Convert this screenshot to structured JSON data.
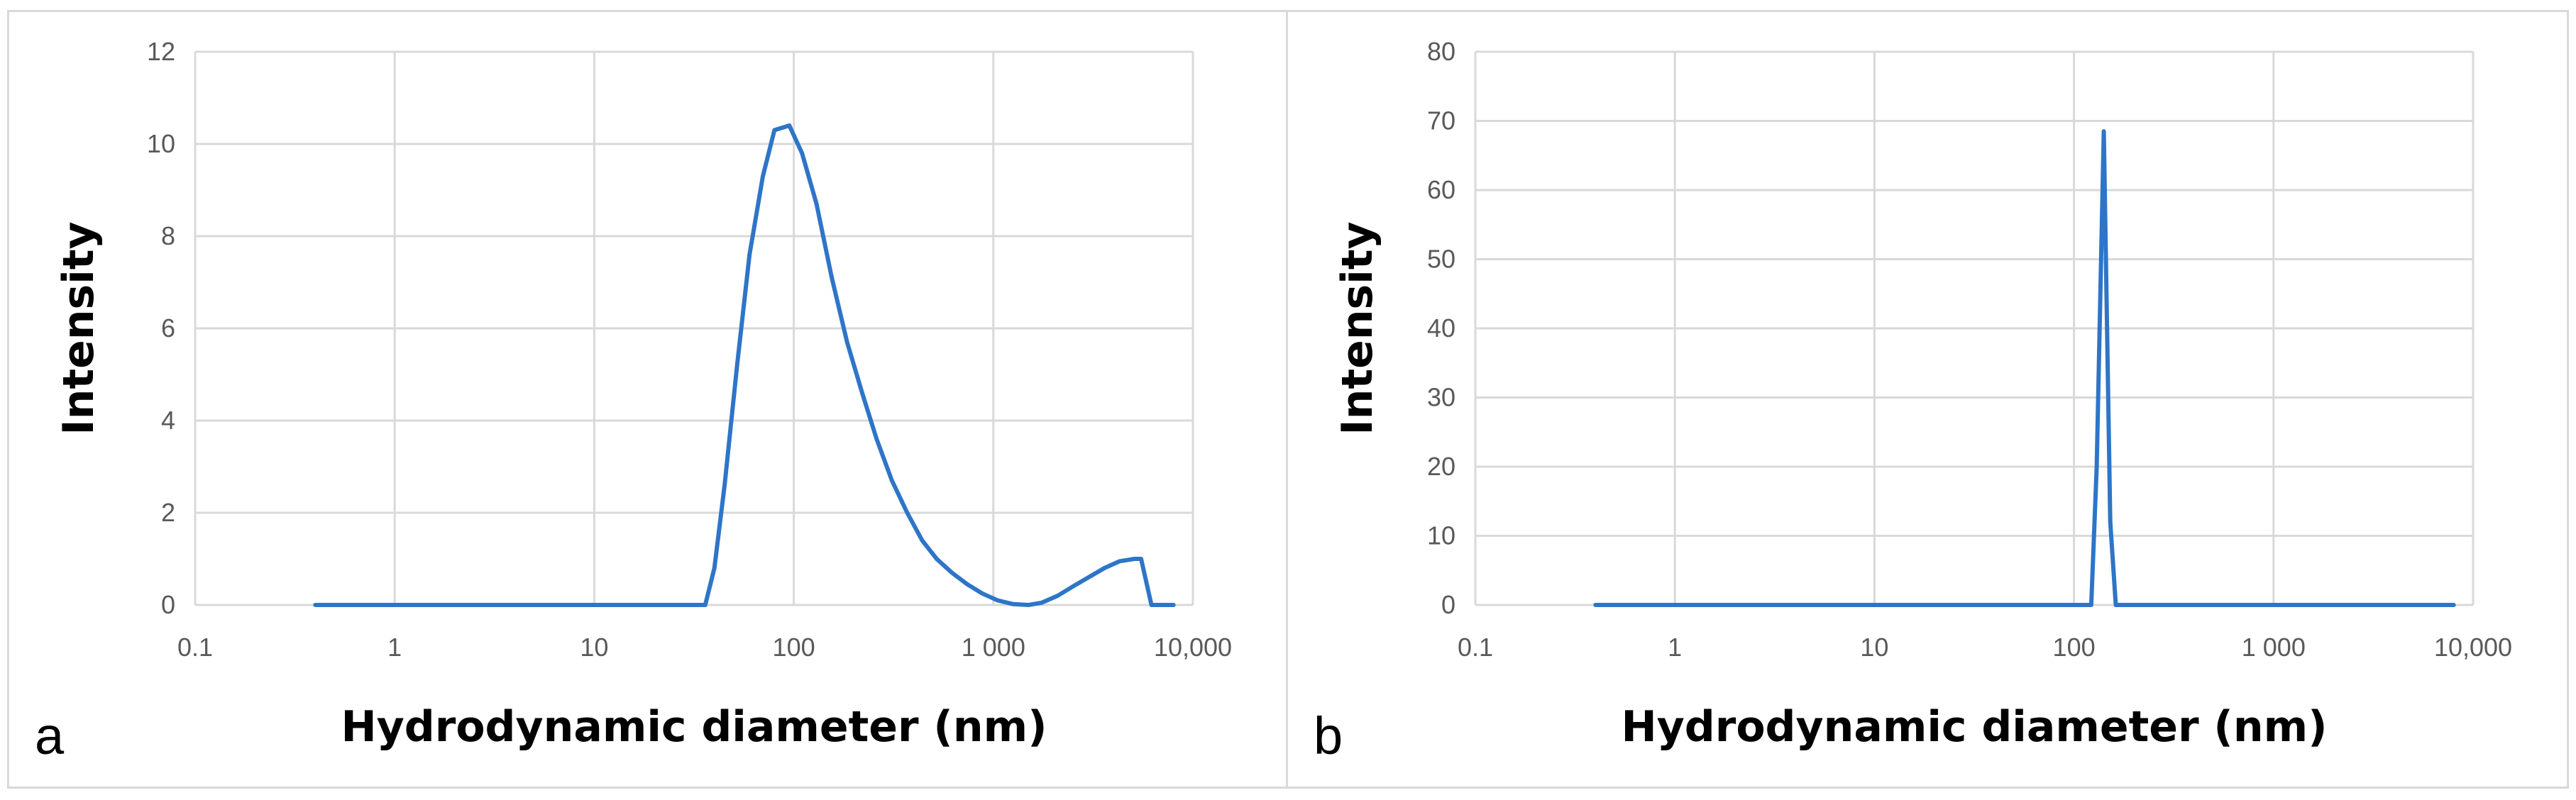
{
  "colors": {
    "line": "#2E75C8",
    "grid": "#d9d9d9",
    "tick": "#595959"
  },
  "chart_data": [
    {
      "panel_label": "a",
      "type": "line",
      "title": "",
      "xlabel": "Hydrodynamic diameter (nm)",
      "ylabel": "Intensity",
      "x_scale": "log",
      "xlim": [
        0.1,
        10000
      ],
      "ylim": [
        0,
        12
      ],
      "y_ticks": [
        0,
        2,
        4,
        6,
        8,
        10,
        12
      ],
      "x_ticks": [
        {
          "value": 0.1,
          "label": "0.1"
        },
        {
          "value": 1,
          "label": "1"
        },
        {
          "value": 10,
          "label": "10"
        },
        {
          "value": 100,
          "label": "100"
        },
        {
          "value": 1000,
          "label": "1 000"
        },
        {
          "value": 10000,
          "label": "10,000"
        }
      ],
      "grid": true,
      "legend": "none",
      "series": [
        {
          "points": [
            [
              0.4,
              0
            ],
            [
              1,
              0
            ],
            [
              10,
              0
            ],
            [
              36,
              0
            ],
            [
              40,
              0.8
            ],
            [
              45,
              2.6
            ],
            [
              52,
              5.2
            ],
            [
              60,
              7.6
            ],
            [
              70,
              9.3
            ],
            [
              80,
              10.3
            ],
            [
              95,
              10.4
            ],
            [
              110,
              9.8
            ],
            [
              130,
              8.7
            ],
            [
              155,
              7.1
            ],
            [
              185,
              5.7
            ],
            [
              220,
              4.6
            ],
            [
              260,
              3.6
            ],
            [
              310,
              2.7
            ],
            [
              370,
              2.0
            ],
            [
              440,
              1.4
            ],
            [
              520,
              1.0
            ],
            [
              620,
              0.7
            ],
            [
              740,
              0.45
            ],
            [
              880,
              0.25
            ],
            [
              1050,
              0.1
            ],
            [
              1250,
              0.02
            ],
            [
              1500,
              0
            ],
            [
              1750,
              0.05
            ],
            [
              2100,
              0.2
            ],
            [
              2500,
              0.4
            ],
            [
              3000,
              0.6
            ],
            [
              3600,
              0.8
            ],
            [
              4300,
              0.95
            ],
            [
              5100,
              1.0
            ],
            [
              5500,
              1.0
            ],
            [
              6200,
              0
            ],
            [
              8000,
              0
            ]
          ]
        }
      ]
    },
    {
      "panel_label": "b",
      "type": "line",
      "title": "",
      "xlabel": "Hydrodynamic diameter (nm)",
      "ylabel": "Intensity",
      "x_scale": "log",
      "xlim": [
        0.1,
        10000
      ],
      "ylim": [
        0,
        80
      ],
      "y_ticks": [
        0,
        10,
        20,
        30,
        40,
        50,
        60,
        70,
        80
      ],
      "x_ticks": [
        {
          "value": 0.1,
          "label": "0.1"
        },
        {
          "value": 1,
          "label": "1"
        },
        {
          "value": 10,
          "label": "10"
        },
        {
          "value": 100,
          "label": "100"
        },
        {
          "value": 1000,
          "label": "1 000"
        },
        {
          "value": 10000,
          "label": "10,000"
        }
      ],
      "grid": true,
      "legend": "none",
      "series": [
        {
          "points": [
            [
              0.4,
              0
            ],
            [
              1,
              0
            ],
            [
              10,
              0
            ],
            [
              100,
              0
            ],
            [
              122,
              0
            ],
            [
              130,
              20
            ],
            [
              141,
              68.5
            ],
            [
              152,
              12
            ],
            [
              162,
              0
            ],
            [
              1000,
              0
            ],
            [
              8000,
              0
            ]
          ]
        }
      ]
    }
  ]
}
